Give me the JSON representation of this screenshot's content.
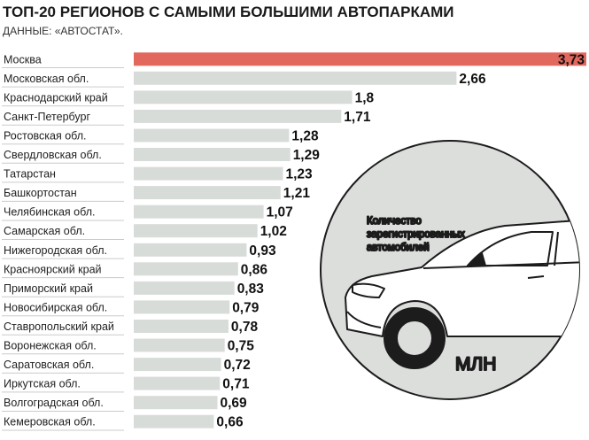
{
  "chart_data": {
    "type": "bar",
    "orientation": "horizontal",
    "title": "ТОП-20 РЕГИОНОВ С САМЫМИ БОЛЬШИМИ АВТОПАРКАМИ",
    "subtitle": "ДАННЫЕ: «АВТОСТАТ».",
    "note": [
      "Количество",
      "зарегистрированных",
      "автомобилей"
    ],
    "unit": "МЛН",
    "categories": [
      "Москва",
      "Московская обл.",
      "Краснодарский край",
      "Санкт-Петербург",
      "Ростовская обл.",
      "Свердловская обл.",
      "Татарстан",
      "Башкортостан",
      "Челябинская обл.",
      "Самарская обл.",
      "Нижегородская обл.",
      "Красноярский край",
      "Приморский край",
      "Новосибирская обл.",
      "Ставропольский край",
      "Воронежская обл.",
      "Саратовская обл.",
      "Иркутская обл.",
      "Волгоградская обл.",
      "Кемеровская обл."
    ],
    "values": [
      3.73,
      2.66,
      1.8,
      1.71,
      1.28,
      1.29,
      1.23,
      1.21,
      1.07,
      1.02,
      0.93,
      0.86,
      0.83,
      0.79,
      0.78,
      0.75,
      0.72,
      0.71,
      0.69,
      0.66
    ],
    "value_labels": [
      "3,73",
      "2,66",
      "1,8",
      "1,71",
      "1,28",
      "1,29",
      "1,23",
      "1,21",
      "1,07",
      "1,02",
      "0,93",
      "0,86",
      "0,83",
      "0,79",
      "0,78",
      "0,75",
      "0,72",
      "0,71",
      "0,69",
      "0,66"
    ],
    "xlim": [
      0,
      3.73
    ],
    "grid": false,
    "legend": "none",
    "colors": {
      "highlight": "#e2675d",
      "bar": "#d8dcd9",
      "circle": "#dcdedc",
      "separator": "#c9cccb",
      "car": "#ffffff",
      "outline": "#1c1c1c"
    }
  }
}
